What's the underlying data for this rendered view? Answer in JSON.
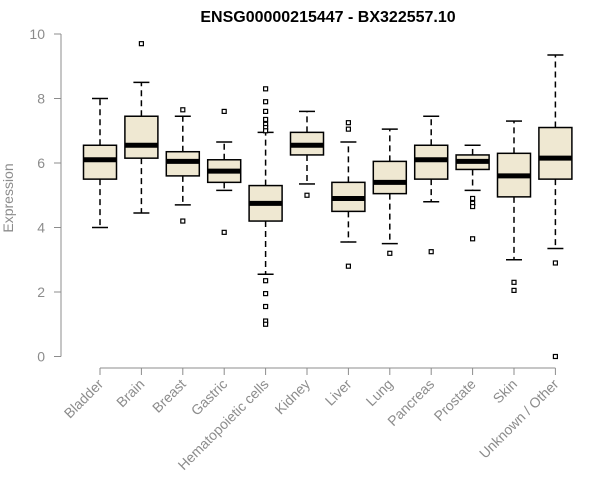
{
  "chart_data": {
    "type": "boxplot",
    "title": "ENSG00000215447 - BX322557.10",
    "xlabel": "",
    "ylabel": "Expression",
    "ylim": [
      0,
      10
    ],
    "yticks": [
      0,
      2,
      4,
      6,
      8,
      10
    ],
    "categories": [
      "Bladder",
      "Brain",
      "Breast",
      "Gastric",
      "Hematopoietic cells",
      "Kidney",
      "Liver",
      "Lung",
      "Pancreas",
      "Prostate",
      "Skin",
      "Unknown / Other"
    ],
    "box_fill": "#efe8d2",
    "stroke_color": "#000000",
    "axis_color": "#8c8c8c",
    "boxes": [
      {
        "min": 4.0,
        "q1": 5.5,
        "median": 6.1,
        "q3": 6.55,
        "max": 8.0,
        "outliers": []
      },
      {
        "min": 4.45,
        "q1": 6.15,
        "median": 6.55,
        "q3": 7.45,
        "max": 8.5,
        "outliers": [
          9.7
        ]
      },
      {
        "min": 4.7,
        "q1": 5.6,
        "median": 6.05,
        "q3": 6.35,
        "max": 7.45,
        "outliers": [
          7.65,
          4.2
        ]
      },
      {
        "min": 5.15,
        "q1": 5.4,
        "median": 5.75,
        "q3": 6.1,
        "max": 6.65,
        "outliers": [
          7.6,
          3.85
        ]
      },
      {
        "min": 2.55,
        "q1": 4.2,
        "median": 4.75,
        "q3": 5.3,
        "max": 6.95,
        "outliers": [
          8.3,
          7.9,
          7.6,
          7.35,
          7.2,
          7.1,
          7.0,
          2.35,
          1.95,
          1.55,
          1.1,
          1.0
        ]
      },
      {
        "min": 5.35,
        "q1": 6.25,
        "median": 6.55,
        "q3": 6.95,
        "max": 7.6,
        "outliers": [
          5.0
        ]
      },
      {
        "min": 3.55,
        "q1": 4.5,
        "median": 4.9,
        "q3": 5.4,
        "max": 6.65,
        "outliers": [
          7.25,
          7.05,
          2.8
        ]
      },
      {
        "min": 3.5,
        "q1": 5.05,
        "median": 5.4,
        "q3": 6.05,
        "max": 7.05,
        "outliers": [
          3.2
        ]
      },
      {
        "min": 4.8,
        "q1": 5.5,
        "median": 6.1,
        "q3": 6.55,
        "max": 7.45,
        "outliers": [
          3.25
        ]
      },
      {
        "min": 5.15,
        "q1": 5.8,
        "median": 6.05,
        "q3": 6.25,
        "max": 6.55,
        "outliers": [
          4.9,
          4.75,
          4.65,
          3.65
        ]
      },
      {
        "min": 3.0,
        "q1": 4.95,
        "median": 5.6,
        "q3": 6.3,
        "max": 7.3,
        "outliers": [
          2.3,
          2.05
        ]
      },
      {
        "min": 3.35,
        "q1": 5.5,
        "median": 6.15,
        "q3": 7.1,
        "max": 9.35,
        "outliers": [
          2.9,
          0.0
        ]
      }
    ]
  }
}
